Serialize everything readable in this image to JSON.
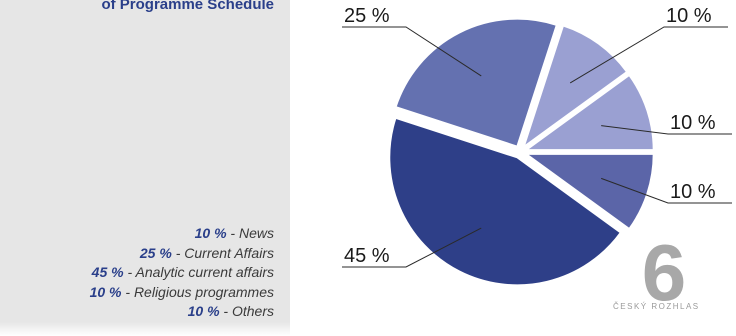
{
  "chart_data": {
    "type": "pie",
    "title": "of Programme Schedule",
    "slices": [
      {
        "legend_pct": "10 %",
        "legend_label": "News",
        "value": 10,
        "label": "10 %",
        "color": "#9aa0d2"
      },
      {
        "legend_pct": "10 %",
        "legend_label": "Others",
        "value": 10,
        "label": "10 %",
        "color": "#9aa0d2"
      },
      {
        "legend_pct": "10 %",
        "legend_label": "Religious programmes",
        "value": 10,
        "label": "10 %",
        "color": "#5b65a8"
      },
      {
        "legend_pct": "45 %",
        "legend_label": "Analytic current affairs",
        "value": 45,
        "label": "45 %",
        "color": "#2e3f88"
      },
      {
        "legend_pct": "25 %",
        "legend_label": "Current Affairs",
        "value": 25,
        "label": "25 %",
        "color": "#6471b0"
      }
    ],
    "legend_order": [
      0,
      4,
      3,
      2,
      1
    ],
    "legend_placement": "left",
    "legend_separator": "-"
  },
  "logo": {
    "glyph": "6",
    "text": "ČESKÝ ROZHLAS",
    "color": "#a8a8a8"
  }
}
